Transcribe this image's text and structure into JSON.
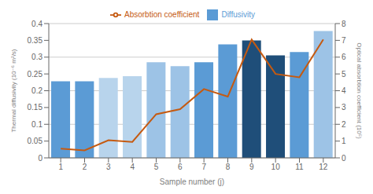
{
  "chart_data": {
    "type": "bar",
    "categories": [
      1,
      2,
      3,
      4,
      5,
      6,
      7,
      8,
      9,
      10,
      11,
      12
    ],
    "xlabel": "Sample number (j)",
    "ylabel": "Thermal diffusivity (10⁻⁶ m²/s)",
    "y2label": "Optical absorbtion coefficient  (10⁵)",
    "series": [
      {
        "name": "Diffusivity",
        "type": "bar",
        "color": "#5b9bd5",
        "colors": [
          "#5b9bd5",
          "#5b9bd5",
          "#b8d4ec",
          "#b8d4ec",
          "#9dc3e6",
          "#9dc3e6",
          "#5b9bd5",
          "#5b9bd5",
          "#1f4e79",
          "#1f4e79",
          "#5b9bd5",
          "#9dc3e6"
        ],
        "values": [
          0.228,
          0.228,
          0.238,
          0.243,
          0.285,
          0.273,
          0.285,
          0.338,
          0.35,
          0.305,
          0.315,
          0.378
        ]
      },
      {
        "name": "Absorbtion coefficient",
        "type": "line",
        "axis": "y2",
        "color": "#c55a11",
        "values": [
          0.55,
          0.45,
          1.05,
          0.95,
          2.6,
          2.9,
          4.1,
          3.65,
          7.05,
          5.0,
          4.8,
          7.05
        ]
      }
    ],
    "ylim": [
      0,
      0.4
    ],
    "yticks": [
      0,
      0.05,
      0.1,
      0.15,
      0.2,
      0.25,
      0.3,
      0.35,
      0.4
    ],
    "y2lim": [
      0,
      8
    ],
    "y2ticks": [
      0,
      1,
      2,
      3,
      4,
      5,
      6,
      7,
      8
    ],
    "grid": true,
    "legend": "top"
  }
}
